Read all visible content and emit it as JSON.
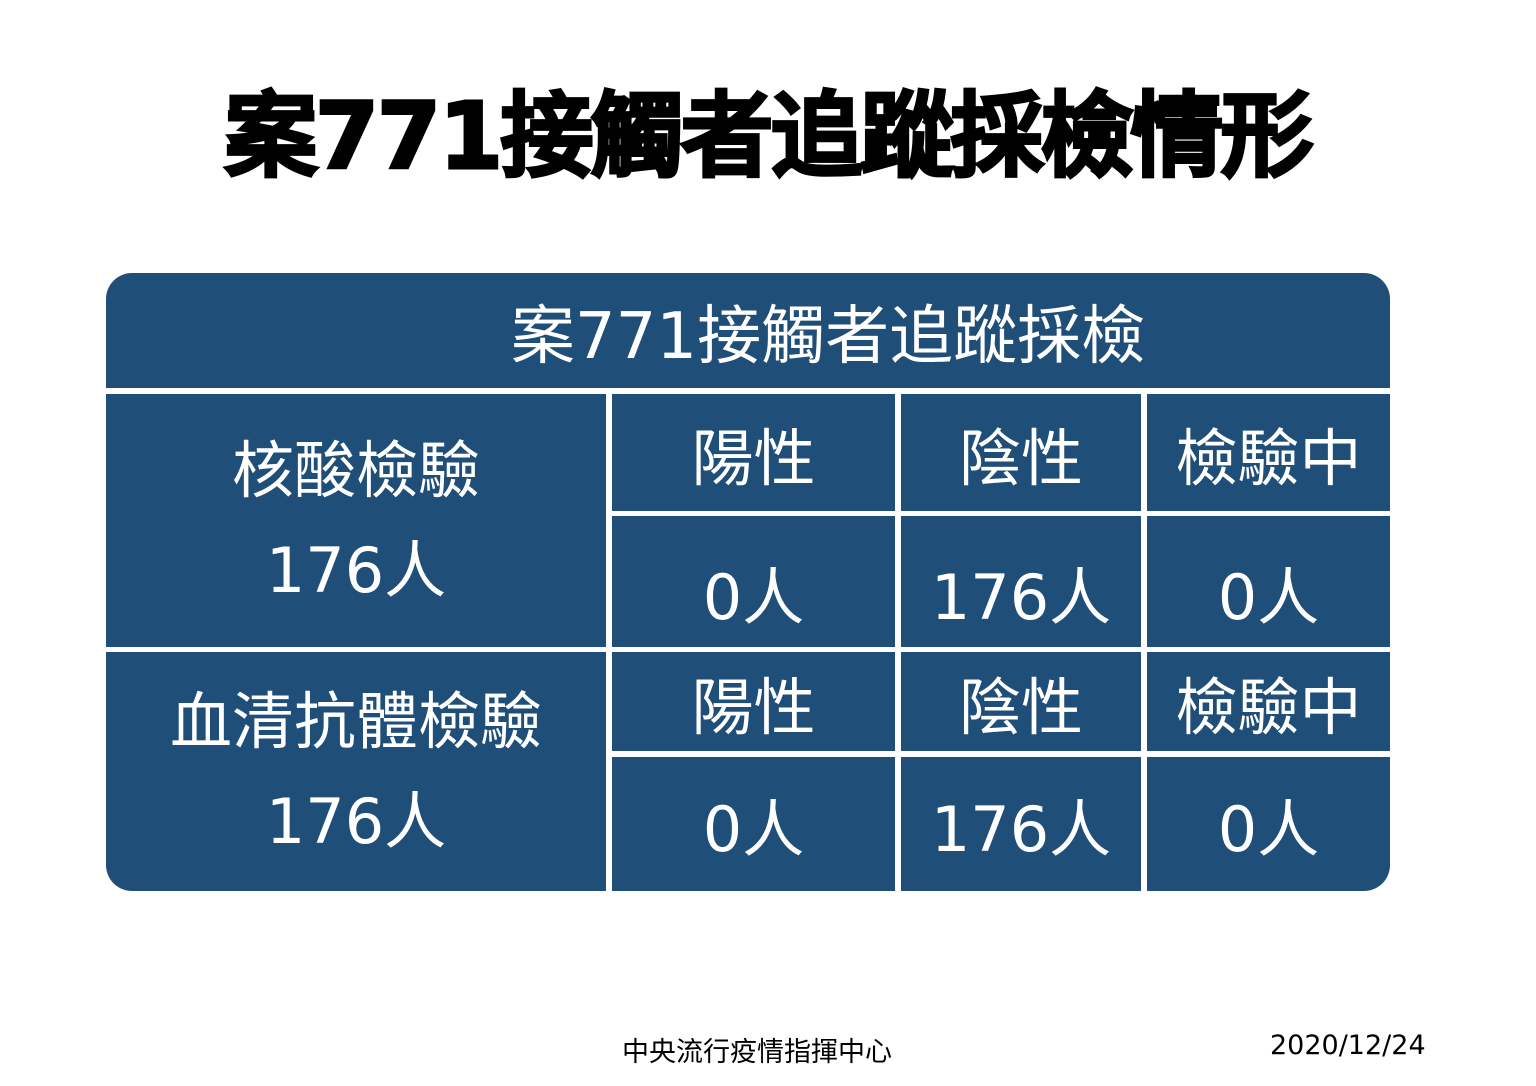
{
  "title": "案771接觸者追蹤採檢情形",
  "table": {
    "header": "案771接觸者追蹤採檢",
    "columns": [
      "陽性",
      "陰性",
      "檢驗中"
    ],
    "rows": [
      {
        "label": "核酸檢驗",
        "total": "176人",
        "values": [
          "0人",
          "176人",
          "0人"
        ]
      },
      {
        "label": "血清抗體檢驗",
        "total": "176人",
        "values": [
          "0人",
          "176人",
          "0人"
        ]
      }
    ]
  },
  "footer": {
    "source": "中央流行疫情指揮中心",
    "date": "2020/12/24"
  },
  "colors": {
    "table_bg": "#1f4e79",
    "text": "#ffffff"
  }
}
